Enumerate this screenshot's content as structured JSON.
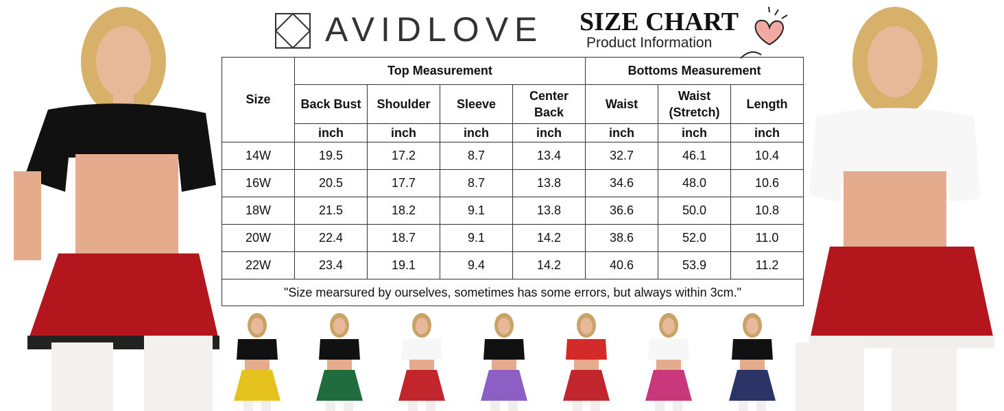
{
  "brand": "AVIDLOVE",
  "heading": {
    "title": "SIZE CHART",
    "subtitle": "Product Information"
  },
  "table": {
    "size_header": "Size",
    "groups": [
      "Top Measurement",
      "Bottoms Measurement"
    ],
    "columns": [
      "Back Bust",
      "Shoulder",
      "Sleeve",
      "Center Back",
      "Waist",
      "Waist (Stretch)",
      "Length"
    ],
    "units": [
      "inch",
      "inch",
      "inch",
      "inch",
      "inch",
      "inch",
      "inch"
    ],
    "rows": [
      [
        "14W",
        "19.5",
        "17.2",
        "8.7",
        "13.4",
        "32.7",
        "46.1",
        "10.4"
      ],
      [
        "16W",
        "20.5",
        "17.7",
        "8.7",
        "13.8",
        "34.6",
        "48.0",
        "10.6"
      ],
      [
        "18W",
        "21.5",
        "18.2",
        "9.1",
        "13.8",
        "36.6",
        "50.0",
        "10.8"
      ],
      [
        "20W",
        "22.4",
        "18.7",
        "9.1",
        "14.2",
        "38.6",
        "52.0",
        "11.0"
      ],
      [
        "22W",
        "23.4",
        "19.1",
        "9.4",
        "14.2",
        "40.6",
        "53.9",
        "11.2"
      ]
    ],
    "note": "\"Size mearsured by ourselves, sometimes has some errors, but always within 3cm.\""
  }
}
